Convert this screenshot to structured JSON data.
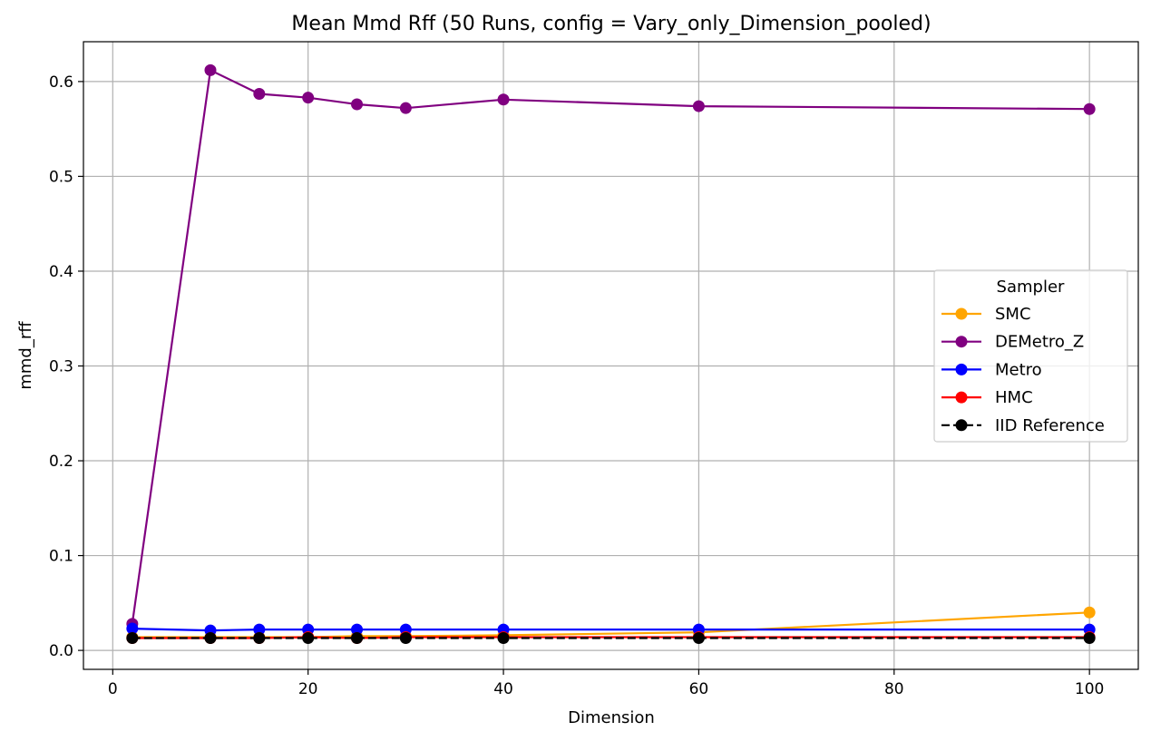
{
  "chart_data": {
    "type": "line",
    "title": "Mean Mmd Rff (50 Runs, config = Vary_only_Dimension_pooled)",
    "xlabel": "Dimension",
    "ylabel": "mmd_rff",
    "xlim": [
      -3,
      105
    ],
    "ylim": [
      -0.02,
      0.642
    ],
    "xticks": [
      0,
      20,
      40,
      60,
      80,
      100
    ],
    "yticks": [
      0.0,
      0.1,
      0.2,
      0.3,
      0.4,
      0.5,
      0.6
    ],
    "xtick_labels": [
      "0",
      "20",
      "40",
      "60",
      "80",
      "100"
    ],
    "ytick_labels": [
      "0.0",
      "0.1",
      "0.2",
      "0.3",
      "0.4",
      "0.5",
      "0.6"
    ],
    "grid": true,
    "legend": {
      "title": "Sampler",
      "position": "center-right"
    },
    "x": [
      2,
      10,
      15,
      20,
      25,
      30,
      40,
      60,
      100
    ],
    "series": [
      {
        "name": "SMC",
        "color": "#FFA500",
        "style": "solid",
        "values": [
          0.014,
          0.014,
          0.014,
          0.014,
          0.015,
          0.015,
          0.016,
          0.019,
          0.04
        ]
      },
      {
        "name": "DEMetro_Z",
        "color": "#800080",
        "style": "solid",
        "values": [
          0.028,
          0.612,
          0.587,
          0.583,
          0.576,
          0.572,
          0.581,
          0.574,
          0.571
        ]
      },
      {
        "name": "Metro",
        "color": "#0000FF",
        "style": "solid",
        "values": [
          0.023,
          0.021,
          0.022,
          0.022,
          0.022,
          0.022,
          0.022,
          0.022,
          0.022
        ]
      },
      {
        "name": "HMC",
        "color": "#FF0000",
        "style": "solid",
        "values": [
          0.013,
          0.013,
          0.013,
          0.014,
          0.013,
          0.014,
          0.014,
          0.014,
          0.014
        ]
      },
      {
        "name": "IID Reference",
        "color": "#000000",
        "style": "dashed",
        "values": [
          0.013,
          0.013,
          0.013,
          0.013,
          0.013,
          0.013,
          0.013,
          0.013,
          0.013
        ]
      }
    ]
  }
}
